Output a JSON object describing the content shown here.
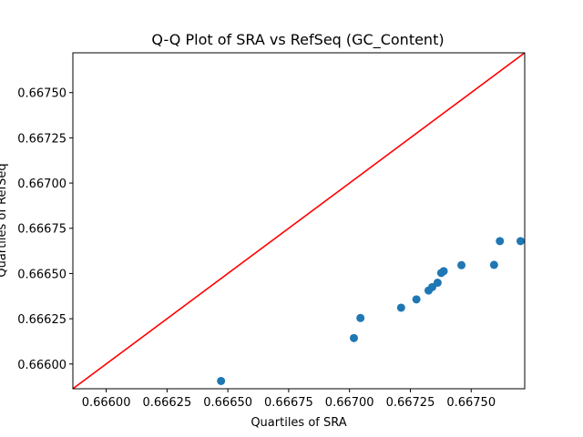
{
  "chart_data": {
    "type": "scatter",
    "title": "Q-Q Plot of SRA vs RefSeq (GC_Content)",
    "xlabel": "Quartiles of SRA",
    "ylabel": "Quartiles of RefSeq",
    "xlim": [
      0.665863,
      0.66772
    ],
    "ylim": [
      0.665863,
      0.66772
    ],
    "xticks": [
      0.666,
      0.66625,
      0.6665,
      0.66675,
      0.667,
      0.66725,
      0.6675
    ],
    "xtick_labels": [
      "0.66600",
      "0.66625",
      "0.66650",
      "0.66675",
      "0.66700",
      "0.66725",
      "0.66750"
    ],
    "yticks": [
      0.666,
      0.66625,
      0.6665,
      0.66675,
      0.667,
      0.66725,
      0.6675
    ],
    "ytick_labels": [
      "0.66600",
      "0.66625",
      "0.66650",
      "0.66675",
      "0.66700",
      "0.66725",
      "0.66750"
    ],
    "grid": false,
    "points": [
      {
        "x": 0.666472,
        "y": 0.665906
      },
      {
        "x": 0.667018,
        "y": 0.666143
      },
      {
        "x": 0.667045,
        "y": 0.666254
      },
      {
        "x": 0.667212,
        "y": 0.666311
      },
      {
        "x": 0.667275,
        "y": 0.666357
      },
      {
        "x": 0.667325,
        "y": 0.666406
      },
      {
        "x": 0.66734,
        "y": 0.666425
      },
      {
        "x": 0.667362,
        "y": 0.666449
      },
      {
        "x": 0.667377,
        "y": 0.666503
      },
      {
        "x": 0.667387,
        "y": 0.666513
      },
      {
        "x": 0.66746,
        "y": 0.666546
      },
      {
        "x": 0.667594,
        "y": 0.666548
      },
      {
        "x": 0.667618,
        "y": 0.666679
      },
      {
        "x": 0.667703,
        "y": 0.666679
      }
    ],
    "reference_line": {
      "from": [
        0.665863,
        0.665863
      ],
      "to": [
        0.66772,
        0.66772
      ]
    },
    "colors": {
      "points": "#1f77b4",
      "reference_line": "#ff0000"
    }
  }
}
